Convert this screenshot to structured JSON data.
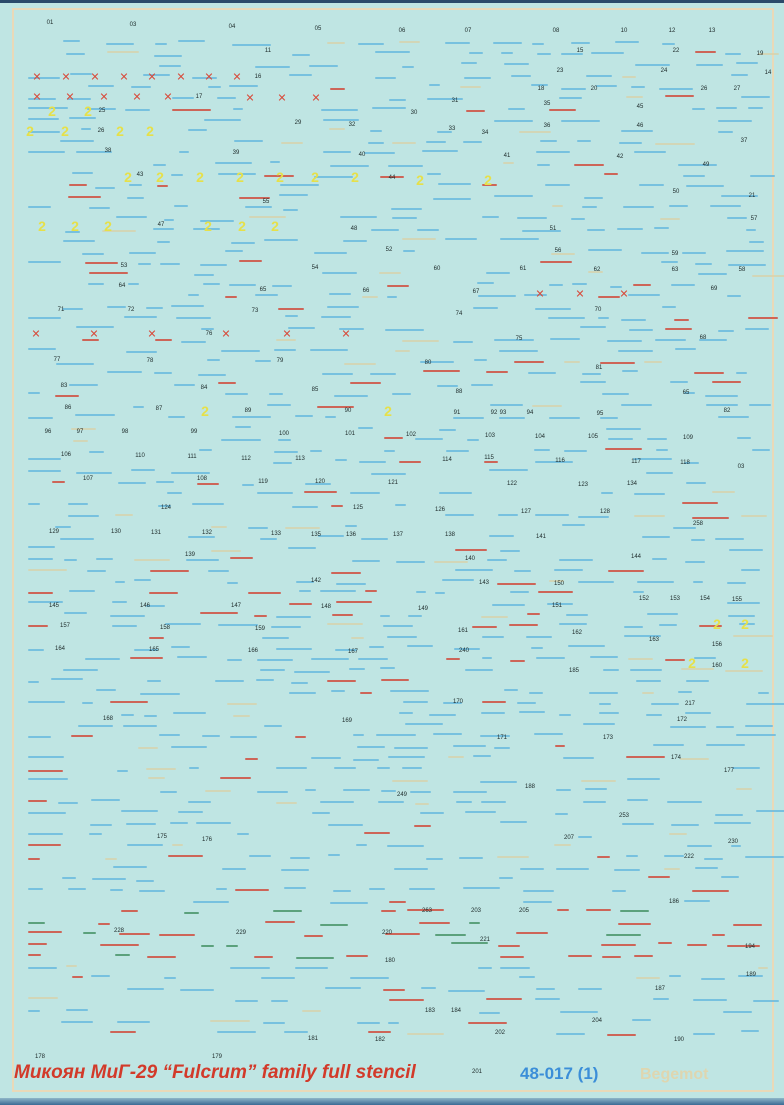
{
  "sheet": {
    "title": "Микоян МиГ-29 “Fulcrum” family full stencil",
    "code": "48-017 (1)",
    "logo": "Begemot",
    "colors": {
      "background": "#bfe5e3",
      "red": "#d23a2a",
      "blue": "#3b8ed8",
      "yellow": "#e6e04a",
      "frame": "#e9d9b8"
    }
  },
  "decal_numbers": [
    "01",
    "03",
    "04",
    "05",
    "06",
    "07",
    "08",
    "10",
    "12",
    "13",
    "11",
    "15",
    "22",
    "19",
    "23",
    "24",
    "14",
    "16",
    "18",
    "20",
    "26",
    "27",
    "17",
    "31",
    "35",
    "45",
    "25",
    "30",
    "29",
    "32",
    "33",
    "34",
    "36",
    "46",
    "26",
    "37",
    "38",
    "39",
    "40",
    "41",
    "42",
    "49",
    "43",
    "44",
    "50",
    "21",
    "55",
    "47",
    "48",
    "51",
    "57",
    "52",
    "56",
    "59",
    "53",
    "54",
    "60",
    "61",
    "62",
    "63",
    "58",
    "64",
    "65",
    "66",
    "67",
    "69",
    "71",
    "72",
    "73",
    "74",
    "70",
    "68",
    "75",
    "76",
    "77",
    "78",
    "79",
    "80",
    "81",
    "83",
    "84",
    "85",
    "88",
    "65",
    "86",
    "87",
    "89",
    "90",
    "91",
    "92",
    "93",
    "94",
    "95",
    "82",
    "96",
    "97",
    "98",
    "99",
    "100",
    "101",
    "102",
    "103",
    "104",
    "105",
    "109",
    "106",
    "110",
    "111",
    "112",
    "113",
    "114",
    "115",
    "116",
    "117",
    "118",
    "03",
    "107",
    "108",
    "119",
    "120",
    "121",
    "122",
    "123",
    "134",
    "124",
    "125",
    "126",
    "127",
    "128",
    "129",
    "130",
    "131",
    "132",
    "133",
    "135",
    "136",
    "137",
    "138",
    "141",
    "258",
    "139",
    "144",
    "140",
    "142",
    "143",
    "150",
    "152",
    "153",
    "154",
    "155",
    "145",
    "146",
    "147",
    "148",
    "149",
    "151",
    "157",
    "158",
    "159",
    "161",
    "162",
    "163",
    "156",
    "164",
    "165",
    "166",
    "167",
    "240",
    "160",
    "185",
    "168",
    "169",
    "170",
    "217",
    "172",
    "171",
    "173",
    "174",
    "177",
    "188",
    "249",
    "253",
    "175",
    "176",
    "207",
    "230",
    "222",
    "186",
    "228",
    "229",
    "220",
    "263",
    "203",
    "205",
    "221",
    "194",
    "180",
    "189",
    "187",
    "183",
    "184",
    "204",
    "202",
    "181",
    "182",
    "190",
    "178",
    "179",
    "201"
  ]
}
